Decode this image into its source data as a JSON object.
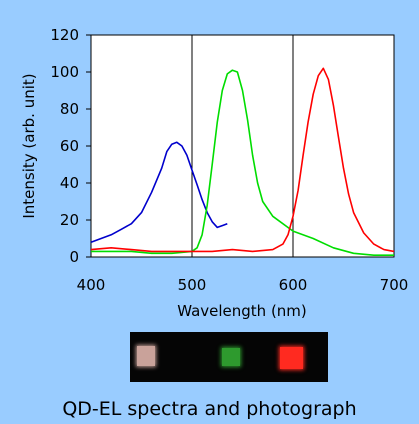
{
  "caption": "QD-EL spectra and photograph",
  "photo": {
    "dots": [
      {
        "name": "blue-qd-el-dot",
        "color": "#c9a29a"
      },
      {
        "name": "green-qd-el-dot",
        "color": "#2e9a2e"
      },
      {
        "name": "red-qd-el-dot",
        "color": "#ff2a20"
      }
    ]
  },
  "chart_data": {
    "type": "line",
    "title": "",
    "xlabel": "Wavelength (nm)",
    "ylabel": "Intensity (arb. unit)",
    "xlim": [
      400,
      700
    ],
    "ylim": [
      0,
      120
    ],
    "xticks": [
      400,
      500,
      600,
      700
    ],
    "yticks": [
      0,
      20,
      40,
      60,
      80,
      100,
      120
    ],
    "grid": "vertical",
    "series": [
      {
        "color": "#0000cc",
        "x": [
          400,
          410,
          420,
          430,
          440,
          450,
          460,
          470,
          475,
          480,
          485,
          490,
          495,
          500,
          505,
          510,
          515,
          520,
          525,
          530,
          535
        ],
        "y": [
          8,
          10,
          12,
          15,
          18,
          24,
          35,
          48,
          57,
          61,
          62,
          60,
          55,
          47,
          39,
          31,
          24,
          19,
          16,
          17,
          18
        ]
      },
      {
        "color": "#00dd00",
        "x": [
          400,
          420,
          440,
          460,
          480,
          500,
          505,
          510,
          515,
          520,
          525,
          530,
          535,
          540,
          545,
          550,
          555,
          560,
          565,
          570,
          580,
          600,
          620,
          640,
          660,
          680,
          700
        ],
        "y": [
          3,
          3,
          3,
          2,
          2,
          3,
          5,
          12,
          28,
          50,
          73,
          90,
          99,
          101,
          100,
          90,
          74,
          55,
          40,
          30,
          22,
          14,
          10,
          5,
          2,
          1,
          1
        ]
      },
      {
        "color": "#ff0000",
        "x": [
          400,
          420,
          440,
          460,
          480,
          500,
          520,
          540,
          560,
          580,
          590,
          595,
          600,
          605,
          610,
          615,
          620,
          625,
          630,
          635,
          640,
          645,
          650,
          655,
          660,
          670,
          680,
          690,
          700
        ],
        "y": [
          4,
          5,
          4,
          3,
          3,
          3,
          3,
          4,
          3,
          4,
          7,
          12,
          22,
          36,
          55,
          73,
          88,
          98,
          102,
          96,
          82,
          65,
          48,
          34,
          24,
          13,
          7,
          4,
          3
        ]
      }
    ]
  }
}
